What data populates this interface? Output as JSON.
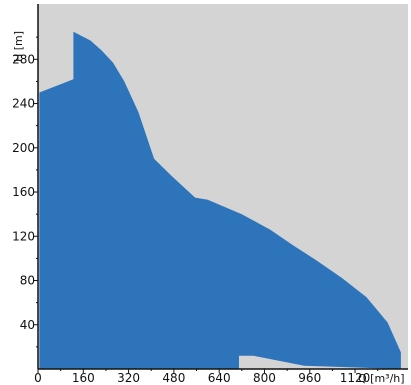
{
  "chart_data": {
    "type": "area",
    "title": "",
    "xlabel": "Q [m³/h]",
    "ylabel": "H [m]",
    "xlim": [
      0,
      1300
    ],
    "ylim": [
      0,
      330
    ],
    "x_ticks": [
      0,
      160,
      320,
      480,
      640,
      800,
      960,
      1120
    ],
    "y_ticks": [
      40,
      80,
      120,
      160,
      200,
      240,
      280
    ],
    "grid": false,
    "legend": "none",
    "colors": {
      "plot_background": "#d4d4d4",
      "fill": "#2e74bb",
      "axis": "#111111"
    },
    "series": [
      {
        "upper": [
          [
            5,
            250
          ],
          [
            125,
            262
          ],
          [
            125,
            305
          ],
          [
            185,
            297
          ],
          [
            225,
            288
          ],
          [
            265,
            277
          ],
          [
            305,
            260
          ],
          [
            355,
            232
          ],
          [
            410,
            190
          ],
          [
            470,
            175
          ],
          [
            555,
            155
          ],
          [
            600,
            153
          ],
          [
            720,
            140
          ],
          [
            820,
            126
          ],
          [
            900,
            112
          ],
          [
            985,
            98
          ],
          [
            1075,
            82
          ],
          [
            1160,
            65
          ],
          [
            1235,
            42
          ],
          [
            1282,
            15
          ]
        ],
        "lower": [
          [
            1282,
            0
          ],
          [
            940,
            3
          ],
          [
            760,
            12
          ],
          [
            710,
            12
          ],
          [
            710,
            0
          ],
          [
            5,
            0
          ]
        ]
      }
    ]
  }
}
